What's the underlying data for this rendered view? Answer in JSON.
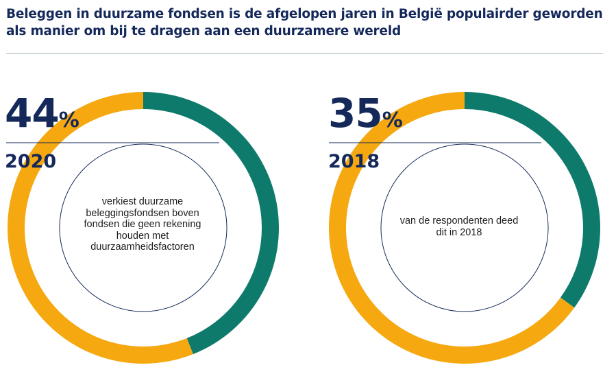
{
  "title": "Beleggen in duurzame fondsen is de afgelopen jaren in België populairder geworden als manier om bij te dragen aan een duurzamere wereld",
  "colors": {
    "accent": "#0d7a6b",
    "remainder": "#f5a80f",
    "text": "#14285a"
  },
  "chart_data": [
    {
      "type": "pie",
      "year": "2020",
      "value_label": "44",
      "pct_sign": "%",
      "caption": "verkiest duurzame beleggingsfondsen boven fondsen die geen rekening houden met duurzaamheidsfactoren",
      "values": [
        44,
        56
      ]
    },
    {
      "type": "pie",
      "year": "2018",
      "value_label": "35",
      "pct_sign": "%",
      "caption": "van de respondenten deed dit in 2018",
      "values": [
        35,
        65
      ]
    }
  ]
}
